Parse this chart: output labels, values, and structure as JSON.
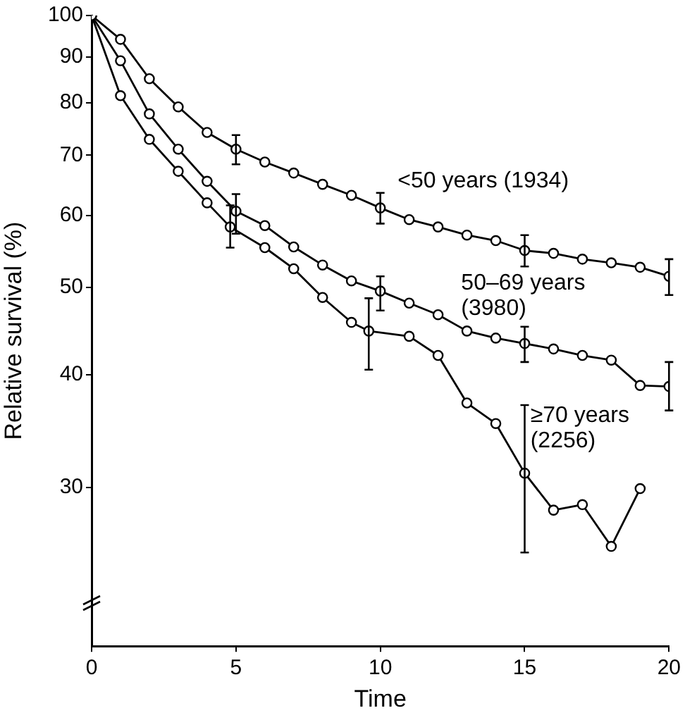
{
  "chart_data": {
    "type": "line",
    "xlabel": "Time",
    "ylabel": "Relative survival (%)",
    "log": "y",
    "xlim": [
      0,
      20
    ],
    "xticks": [
      0,
      5,
      10,
      15,
      20
    ],
    "ylim": [
      20,
      100
    ],
    "yticks": [
      30,
      40,
      50,
      60,
      70,
      80,
      90,
      100
    ],
    "grid": false,
    "legend": false,
    "marker": "circle",
    "line_style": "solid",
    "series": [
      {
        "name": "<50 years (1934)",
        "color": "#000000",
        "x": [
          0,
          1,
          2,
          3,
          4,
          5,
          6,
          7,
          8,
          9,
          10,
          11,
          12,
          13,
          14,
          15,
          16,
          17,
          18,
          19,
          20
        ],
        "values": [
          100,
          94.1,
          85.1,
          79.2,
          74.2,
          71.1,
          68.8,
          66.9,
          65.0,
          63.2,
          61.2,
          59.4,
          58.3,
          57.1,
          56.3,
          54.9,
          54.5,
          53.7,
          53.2,
          52.6,
          51.4
        ],
        "errors": [
          null,
          null,
          null,
          null,
          null,
          [
            68.4,
            73.7
          ],
          null,
          null,
          null,
          null,
          [
            58.8,
            63.6
          ],
          null,
          null,
          null,
          null,
          [
            52.7,
            57.1
          ],
          null,
          null,
          null,
          null,
          [
            49.0,
            53.7
          ]
        ]
      },
      {
        "name": "50–69 years (3980)",
        "color": "#000000",
        "x": [
          0,
          1,
          2,
          3,
          4,
          5,
          6,
          7,
          8,
          9,
          10,
          11,
          12,
          13,
          14,
          15,
          16,
          17,
          18,
          19,
          20
        ],
        "values": [
          100,
          89.1,
          77.8,
          71.1,
          65.5,
          60.7,
          58.5,
          55.4,
          52.9,
          50.8,
          49.5,
          48.0,
          46.6,
          44.7,
          43.9,
          43.3,
          42.7,
          42.0,
          41.5,
          38.9,
          38.8
        ],
        "errors": [
          null,
          null,
          null,
          null,
          null,
          [
            57.3,
            63.4
          ],
          null,
          null,
          null,
          null,
          [
            47.1,
            51.4
          ],
          null,
          null,
          null,
          null,
          [
            41.3,
            45.2
          ],
          null,
          null,
          null,
          null,
          [
            36.5,
            41.3
          ]
        ]
      },
      {
        "name": "≥70 years (2256)",
        "color": "#000000",
        "x": [
          0,
          1,
          2,
          3,
          4,
          4.8,
          6,
          7,
          8,
          9,
          9.6,
          11,
          12,
          13,
          14,
          15,
          16,
          17,
          18,
          19
        ],
        "values": [
          100,
          81.5,
          72.9,
          67.2,
          62.0,
          58.3,
          55.3,
          52.4,
          48.7,
          45.7,
          44.7,
          44.1,
          42.0,
          37.2,
          35.3,
          31.1,
          28.3,
          28.7,
          25.8,
          29.9
        ],
        "errors": [
          null,
          null,
          null,
          null,
          null,
          [
            55.3,
            61.6
          ],
          null,
          null,
          null,
          null,
          [
            40.5,
            48.6
          ],
          null,
          null,
          null,
          null,
          [
            25.4,
            37.0
          ],
          null,
          null,
          null,
          null
        ]
      }
    ]
  }
}
